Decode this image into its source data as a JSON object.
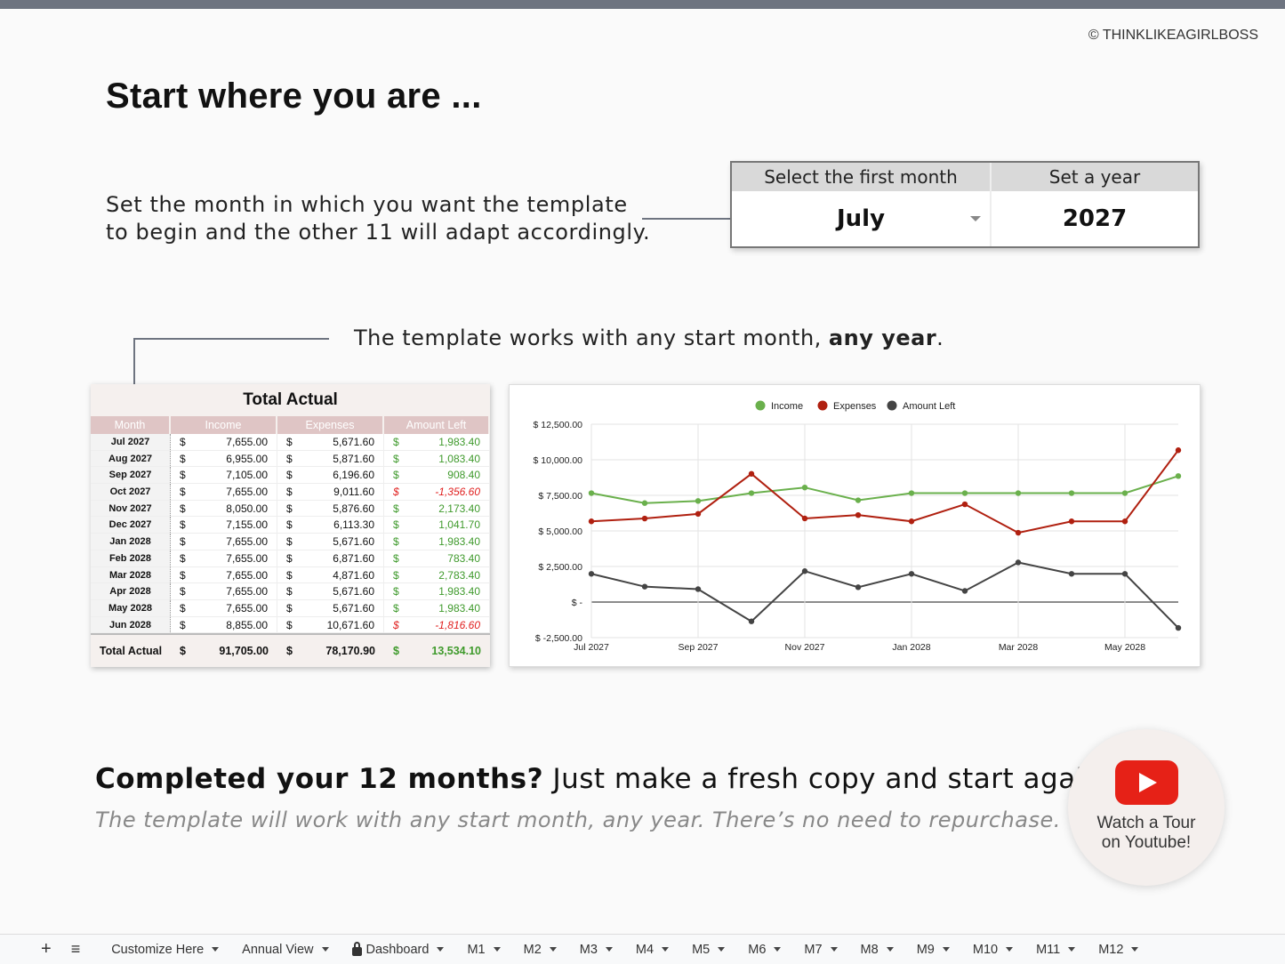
{
  "copyright": "© THINKLIKEAGIRLBOSS",
  "title": "Start where you are ...",
  "description": [
    "Set the month in which you want the template",
    "to begin and the other 11 will adapt accordingly."
  ],
  "selector": {
    "month_header": "Select the first month",
    "month_value": "July",
    "year_header": "Set a year",
    "year_value": "2027"
  },
  "note": {
    "text": "The template works with any start month, ",
    "bold": "any year",
    "end": "."
  },
  "table": {
    "title": "Total Actual",
    "columns": [
      "Month",
      "Income",
      "Expenses",
      "Amount Left"
    ],
    "currency": "$",
    "rows": [
      [
        "Jul 2027",
        "7,655.00",
        "5,671.60",
        "1,983.40"
      ],
      [
        "Aug 2027",
        "6,955.00",
        "5,871.60",
        "1,083.40"
      ],
      [
        "Sep 2027",
        "7,105.00",
        "6,196.60",
        "908.40"
      ],
      [
        "Oct 2027",
        "7,655.00",
        "9,011.60",
        "-1,356.60"
      ],
      [
        "Nov 2027",
        "8,050.00",
        "5,876.60",
        "2,173.40"
      ],
      [
        "Dec 2027",
        "7,155.00",
        "6,113.30",
        "1,041.70"
      ],
      [
        "Jan 2028",
        "7,655.00",
        "5,671.60",
        "1,983.40"
      ],
      [
        "Feb 2028",
        "7,655.00",
        "6,871.60",
        "783.40"
      ],
      [
        "Mar 2028",
        "7,655.00",
        "4,871.60",
        "2,783.40"
      ],
      [
        "Apr 2028",
        "7,655.00",
        "5,671.60",
        "1,983.40"
      ],
      [
        "May 2028",
        "7,655.00",
        "5,671.60",
        "1,983.40"
      ],
      [
        "Jun 2028",
        "8,855.00",
        "10,671.60",
        "-1,816.60"
      ]
    ],
    "total": [
      "Total Actual",
      "91,705.00",
      "78,170.90",
      "13,534.10"
    ]
  },
  "chart_data": {
    "type": "line",
    "x": [
      "Jul 2027",
      "Aug 2027",
      "Sep 2027",
      "Oct 2027",
      "Nov 2027",
      "Dec 2027",
      "Jan 2028",
      "Feb 2028",
      "Mar 2028",
      "Apr 2028",
      "May 2028",
      "Jun 2028"
    ],
    "x_tick_labels": [
      "Jul 2027",
      "Sep 2027",
      "Nov 2027",
      "Jan 2028",
      "Mar 2028",
      "May 2028"
    ],
    "y_tick_labels": [
      "$ 12,500.00",
      "$ 10,000.00",
      "$ 7,500.00",
      "$ 5,000.00",
      "$ 2,500.00",
      "$ -",
      "$ -2,500.00"
    ],
    "y_ticks": [
      12500,
      10000,
      7500,
      5000,
      2500,
      0,
      -2500
    ],
    "ylim": [
      -2500,
      12500
    ],
    "grid": true,
    "legend_position": "top",
    "series": [
      {
        "name": "Income",
        "color": "#6ab04c",
        "values": [
          7655,
          6955,
          7105,
          7655,
          8050,
          7155,
          7655,
          7655,
          7655,
          7655,
          7655,
          8855
        ]
      },
      {
        "name": "Expenses",
        "color": "#b02010",
        "values": [
          5671.6,
          5871.6,
          6196.6,
          9011.6,
          5876.6,
          6113.3,
          5671.6,
          6871.6,
          4871.6,
          5671.6,
          5671.6,
          10671.6
        ]
      },
      {
        "name": "Amount Left",
        "color": "#444444",
        "values": [
          1983.4,
          1083.4,
          908.4,
          -1356.6,
          2173.4,
          1041.7,
          1983.4,
          783.4,
          2783.4,
          1983.4,
          1983.4,
          -1816.6
        ]
      }
    ]
  },
  "bottom": {
    "bold": "Completed your 12 months?",
    "rest": " Just make a fresh copy and start again.",
    "sub": "The template will work with any start month, any year. There’s no need to repurchase."
  },
  "youtube": {
    "line1": "Watch a Tour",
    "line2": "on Youtube!"
  },
  "sheet_tabs": {
    "add": "+",
    "menu": "≡",
    "tabs": [
      "Customize Here",
      "Annual View",
      "Dashboard",
      "M1",
      "M2",
      "M3",
      "M4",
      "M5",
      "M6",
      "M7",
      "M8",
      "M9",
      "M10",
      "M11",
      "M12"
    ]
  }
}
